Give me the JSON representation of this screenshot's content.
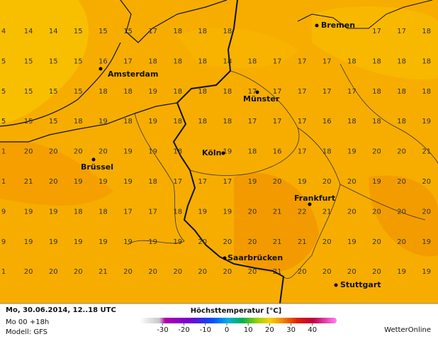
{
  "grid": {
    "rows": [
      [
        4,
        14,
        14,
        15,
        15,
        15,
        17,
        18,
        18,
        18,
        null,
        null,
        null,
        null,
        null,
        17,
        17,
        18
      ],
      [
        5,
        15,
        15,
        15,
        16,
        17,
        18,
        18,
        18,
        18,
        18,
        17,
        17,
        17,
        18,
        18,
        18,
        18
      ],
      [
        5,
        15,
        15,
        15,
        18,
        18,
        19,
        18,
        18,
        18,
        17,
        17,
        17,
        17,
        17,
        18,
        18,
        18
      ],
      [
        5,
        15,
        15,
        18,
        19,
        18,
        19,
        18,
        18,
        18,
        17,
        17,
        17,
        16,
        18,
        18,
        18,
        19
      ],
      [
        1,
        20,
        20,
        20,
        20,
        19,
        19,
        18,
        null,
        19,
        18,
        16,
        17,
        18,
        19,
        20,
        20,
        21
      ],
      [
        1,
        21,
        20,
        19,
        19,
        19,
        18,
        17,
        17,
        17,
        19,
        20,
        19,
        20,
        20,
        19,
        20,
        20
      ],
      [
        9,
        19,
        19,
        18,
        18,
        17,
        17,
        18,
        19,
        19,
        20,
        21,
        22,
        21,
        20,
        20,
        20,
        20
      ],
      [
        9,
        19,
        19,
        19,
        19,
        19,
        19,
        19,
        20,
        20,
        20,
        21,
        21,
        20,
        19,
        20,
        20,
        19
      ],
      [
        1,
        20,
        20,
        20,
        21,
        20,
        20,
        20,
        20,
        20,
        20,
        21,
        20,
        20,
        20,
        20,
        19,
        19
      ]
    ]
  },
  "cities": [
    {
      "name": "Bremen"
    },
    {
      "name": "Amsterdam"
    },
    {
      "name": "Münster"
    },
    {
      "name": "Köln"
    },
    {
      "name": "Brüssel"
    },
    {
      "name": "Frankfurt"
    },
    {
      "name": "Saarbrücken"
    },
    {
      "name": "Stuttgart"
    }
  ],
  "footer": {
    "date": "Mo, 30.06.2014, 12..18 UTC",
    "run": "Mo 00 +18h",
    "model": "Modell: GFS",
    "title": "Höchsttemperatur [°C]",
    "brand": "WetterOnline"
  },
  "legend": {
    "ticks": [
      -30,
      -20,
      -10,
      0,
      10,
      20,
      30,
      40
    ]
  }
}
